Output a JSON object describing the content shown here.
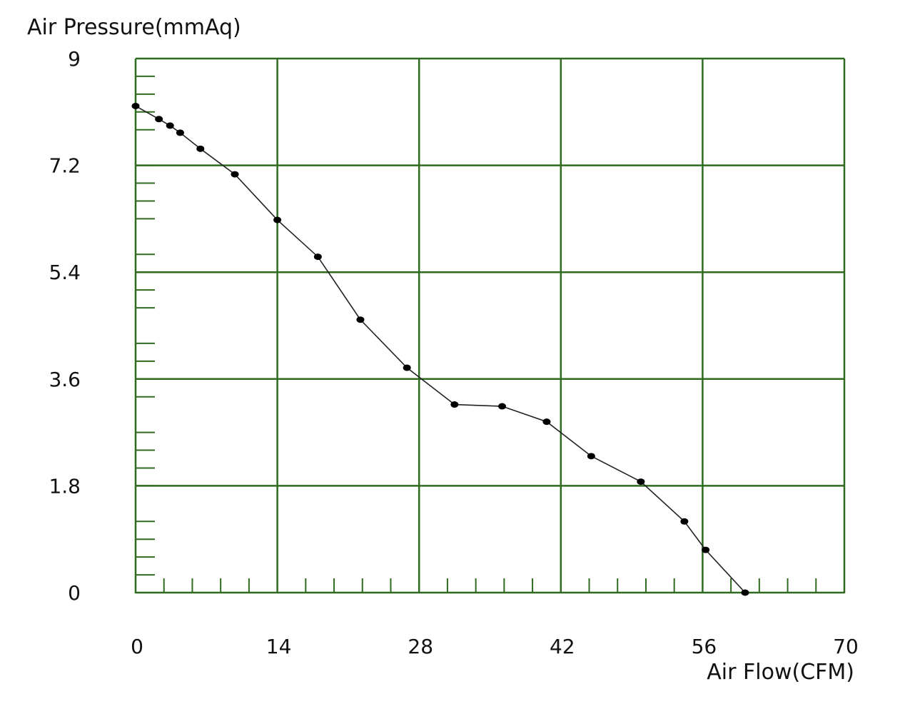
{
  "chart_data": {
    "type": "line",
    "ylabel": "Air Pressure(mmAq)",
    "xlabel": "Air Flow(CFM)",
    "xlim": [
      0,
      70
    ],
    "ylim": [
      0,
      9
    ],
    "x_ticks": [
      "0",
      "14",
      "28",
      "42",
      "56",
      "70"
    ],
    "y_ticks": [
      "0",
      "1.8",
      "3.6",
      "5.4",
      "7.2",
      "9"
    ],
    "grid": true,
    "colors": {
      "grid": "#2e6b1f",
      "line": "#222222",
      "marker": "#000000"
    },
    "series": [
      {
        "x": [
          0,
          2.3,
          3.4,
          4.4,
          6.4,
          9.8,
          14,
          18,
          22.2,
          26.8,
          31.5,
          36.2,
          40.6,
          45,
          49.9,
          54.2,
          56.3,
          60.2
        ],
        "values": [
          8.2,
          7.98,
          7.87,
          7.75,
          7.48,
          7.05,
          6.28,
          5.66,
          4.6,
          3.79,
          3.17,
          3.14,
          2.88,
          2.3,
          1.87,
          1.2,
          0.72,
          0.0
        ]
      }
    ]
  }
}
